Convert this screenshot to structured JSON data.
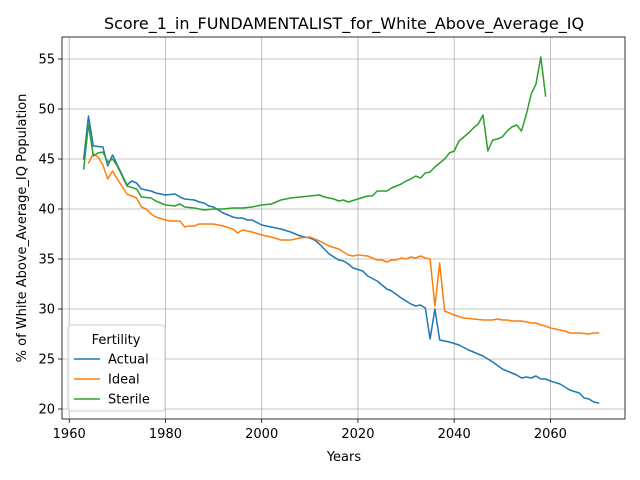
{
  "chart_data": {
    "type": "line",
    "title": "Score_1_in_FUNDAMENTALIST_for_White_Above_Average_IQ",
    "xlabel": "Years",
    "ylabel": "% of White Above_Average_IQ Population",
    "xlim": [
      1958.5,
      2075.5
    ],
    "ylim": [
      19.0,
      57.2
    ],
    "xticks": [
      1960,
      1980,
      2000,
      2020,
      2040,
      2060
    ],
    "yticks": [
      20,
      25,
      30,
      35,
      40,
      45,
      50,
      55
    ],
    "grid": true,
    "legend": {
      "title": "Fertility",
      "position": "lower-left"
    },
    "series": [
      {
        "name": "Actual",
        "color": "#1f77b4",
        "x": [
          1963,
          1964,
          1965,
          1967,
          1968,
          1969,
          1970,
          1972,
          1973,
          1974,
          1975,
          1977,
          1978,
          1980,
          1982,
          1983,
          1984,
          1986,
          1987,
          1988,
          1989,
          1990,
          1992,
          1994,
          1995,
          1996,
          1997,
          1998,
          2000,
          2002,
          2004,
          2006,
          2008,
          2010,
          2011,
          2012,
          2014,
          2016,
          2017,
          2018,
          2019,
          2021,
          2022,
          2024,
          2025,
          2026,
          2027,
          2029,
          2031,
          2032,
          2033,
          2034,
          2035,
          2036,
          2037,
          2039,
          2041,
          2043,
          2044,
          2046,
          2048,
          2050,
          2051,
          2053,
          2054,
          2055,
          2056,
          2057,
          2058,
          2059,
          2060,
          2062,
          2064,
          2066,
          2067,
          2068,
          2069,
          2070
        ],
        "y": [
          45,
          49.3,
          46.3,
          46.2,
          44.3,
          45.4,
          44.4,
          42.4,
          42.8,
          42.6,
          42.0,
          41.8,
          41.6,
          41.4,
          41.5,
          41.2,
          41.0,
          40.9,
          40.7,
          40.6,
          40.3,
          40.2,
          39.6,
          39.2,
          39.1,
          39.1,
          38.9,
          38.9,
          38.4,
          38.2,
          38.0,
          37.7,
          37.3,
          37.1,
          36.9,
          36.5,
          35.5,
          34.9,
          34.8,
          34.5,
          34.1,
          33.8,
          33.3,
          32.8,
          32.4,
          32.0,
          31.8,
          31.1,
          30.5,
          30.3,
          30.4,
          30.1,
          27.0,
          30.0,
          26.9,
          26.7,
          26.4,
          25.9,
          25.7,
          25.3,
          24.7,
          24.0,
          23.8,
          23.4,
          23.1,
          23.2,
          23.1,
          23.3,
          23.0,
          23.0,
          22.8,
          22.5,
          21.9,
          21.6,
          21.1,
          21.0,
          20.7,
          20.6
        ]
      },
      {
        "name": "Ideal",
        "color": "#ff7f0e",
        "x": [
          1964,
          1965,
          1966,
          1967,
          1968,
          1969,
          1970,
          1972,
          1974,
          1975,
          1976,
          1977,
          1978,
          1980,
          1981,
          1983,
          1984,
          1985,
          1986,
          1987,
          1989,
          1990,
          1992,
          1994,
          1995,
          1996,
          1998,
          2000,
          2002,
          2004,
          2006,
          2008,
          2010,
          2012,
          2014,
          2016,
          2018,
          2019,
          2020,
          2022,
          2024,
          2025,
          2026,
          2027,
          2028,
          2029,
          2030,
          2031,
          2032,
          2033,
          2034,
          2035,
          2036,
          2037,
          2038,
          2040,
          2042,
          2044,
          2046,
          2048,
          2049,
          2050,
          2051,
          2052,
          2054,
          2056,
          2057,
          2058,
          2059,
          2060,
          2062,
          2063,
          2064,
          2066,
          2068,
          2069,
          2070
        ],
        "y": [
          44.6,
          45.5,
          45.2,
          44.4,
          43.0,
          43.8,
          43.0,
          41.5,
          41.1,
          40.2,
          40.0,
          39.5,
          39.2,
          38.9,
          38.8,
          38.8,
          38.2,
          38.3,
          38.3,
          38.5,
          38.5,
          38.5,
          38.3,
          38.0,
          37.6,
          37.9,
          37.7,
          37.4,
          37.2,
          36.9,
          36.9,
          37.1,
          37.2,
          36.8,
          36.3,
          36.0,
          35.4,
          35.3,
          35.4,
          35.3,
          34.9,
          34.9,
          34.7,
          34.9,
          34.9,
          35.1,
          35.0,
          35.2,
          35.1,
          35.3,
          35.1,
          35.0,
          30.3,
          34.6,
          29.8,
          29.4,
          29.1,
          29.0,
          28.9,
          28.9,
          29.0,
          28.9,
          28.9,
          28.8,
          28.8,
          28.6,
          28.6,
          28.4,
          28.3,
          28.1,
          27.9,
          27.8,
          27.6,
          27.6,
          27.5,
          27.6,
          27.6
        ]
      },
      {
        "name": "Sterile",
        "color": "#2ca02c",
        "x": [
          1963,
          1964,
          1965,
          1966,
          1967,
          1968,
          1969,
          1970,
          1972,
          1974,
          1975,
          1977,
          1978,
          1980,
          1982,
          1983,
          1984,
          1986,
          1988,
          1990,
          1992,
          1994,
          1996,
          1998,
          2000,
          2002,
          2004,
          2006,
          2008,
          2010,
          2012,
          2013,
          2015,
          2016,
          2017,
          2018,
          2020,
          2022,
          2023,
          2024,
          2026,
          2027,
          2028,
          2029,
          2030,
          2031,
          2032,
          2033,
          2034,
          2035,
          2036,
          2038,
          2039,
          2040,
          2041,
          2042,
          2043,
          2044,
          2045,
          2046,
          2047,
          2048,
          2049,
          2050,
          2051,
          2052,
          2053,
          2054,
          2055,
          2056,
          2057,
          2058,
          2059
        ],
        "y": [
          44,
          48.5,
          45.3,
          45.6,
          45.7,
          44.7,
          45.0,
          44.3,
          42.3,
          42.0,
          41.2,
          41.1,
          40.8,
          40.4,
          40.3,
          40.5,
          40.2,
          40.1,
          39.9,
          40.0,
          40.0,
          40.1,
          40.1,
          40.2,
          40.4,
          40.5,
          40.9,
          41.1,
          41.2,
          41.3,
          41.4,
          41.2,
          41.0,
          40.8,
          40.9,
          40.7,
          41.0,
          41.3,
          41.3,
          41.8,
          41.8,
          42.1,
          42.3,
          42.5,
          42.8,
          43.0,
          43.3,
          43.1,
          43.6,
          43.7,
          44.2,
          45.0,
          45.6,
          45.8,
          46.8,
          47.2,
          47.6,
          48.1,
          48.5,
          49.4,
          45.8,
          46.9,
          47.0,
          47.2,
          47.8,
          48.2,
          48.4,
          47.8,
          49.5,
          51.5,
          52.5,
          55.2,
          51.3
        ]
      }
    ]
  }
}
